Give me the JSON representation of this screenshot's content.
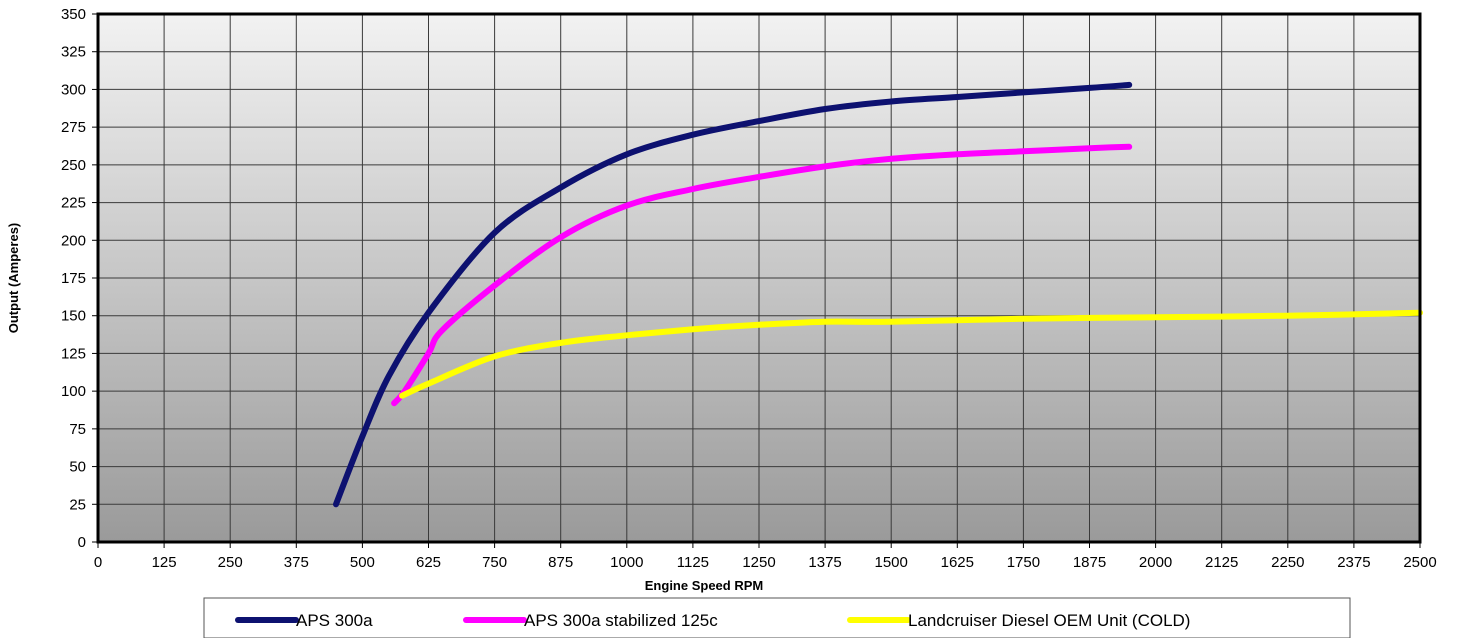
{
  "chart_data": {
    "type": "line",
    "title": "",
    "xlabel": "Engine Speed RPM",
    "ylabel": "Output (Amperes)",
    "xlim": [
      0,
      2500
    ],
    "ylim": [
      0,
      350
    ],
    "x_ticks": [
      0,
      125,
      250,
      375,
      500,
      625,
      750,
      875,
      1000,
      1125,
      1250,
      1375,
      1500,
      1625,
      1750,
      1875,
      2000,
      2125,
      2250,
      2375,
      2500
    ],
    "y_ticks": [
      0,
      25,
      50,
      75,
      100,
      125,
      150,
      175,
      200,
      225,
      250,
      275,
      300,
      325,
      350
    ],
    "grid": true,
    "legend_position": "bottom",
    "plot_background": "gradient light-to-dark gray",
    "series": [
      {
        "name": "APS 300a",
        "color": "#0d1170",
        "points": [
          [
            450,
            25
          ],
          [
            500,
            70
          ],
          [
            550,
            110
          ],
          [
            625,
            152
          ],
          [
            750,
            205
          ],
          [
            875,
            235
          ],
          [
            1000,
            257
          ],
          [
            1125,
            270
          ],
          [
            1250,
            279
          ],
          [
            1375,
            287
          ],
          [
            1500,
            292
          ],
          [
            1625,
            295
          ],
          [
            1750,
            298
          ],
          [
            1875,
            301
          ],
          [
            1950,
            303
          ]
        ]
      },
      {
        "name": "APS 300a stabilized 125c",
        "color": "#ff00ff",
        "points": [
          [
            560,
            92
          ],
          [
            580,
            100
          ],
          [
            625,
            125
          ],
          [
            650,
            140
          ],
          [
            750,
            170
          ],
          [
            875,
            202
          ],
          [
            1000,
            223
          ],
          [
            1125,
            234
          ],
          [
            1250,
            242
          ],
          [
            1375,
            249
          ],
          [
            1500,
            254
          ],
          [
            1625,
            257
          ],
          [
            1750,
            259
          ],
          [
            1875,
            261
          ],
          [
            1950,
            262
          ]
        ]
      },
      {
        "name": "Landcruiser Diesel OEM Unit (COLD)",
        "color": "#ffff00",
        "points": [
          [
            575,
            97
          ],
          [
            625,
            105
          ],
          [
            750,
            123
          ],
          [
            875,
            132
          ],
          [
            1000,
            137
          ],
          [
            1125,
            141
          ],
          [
            1250,
            144
          ],
          [
            1375,
            146
          ],
          [
            1500,
            146
          ],
          [
            1750,
            148
          ],
          [
            2000,
            149
          ],
          [
            2250,
            150
          ],
          [
            2500,
            152
          ]
        ]
      }
    ]
  }
}
